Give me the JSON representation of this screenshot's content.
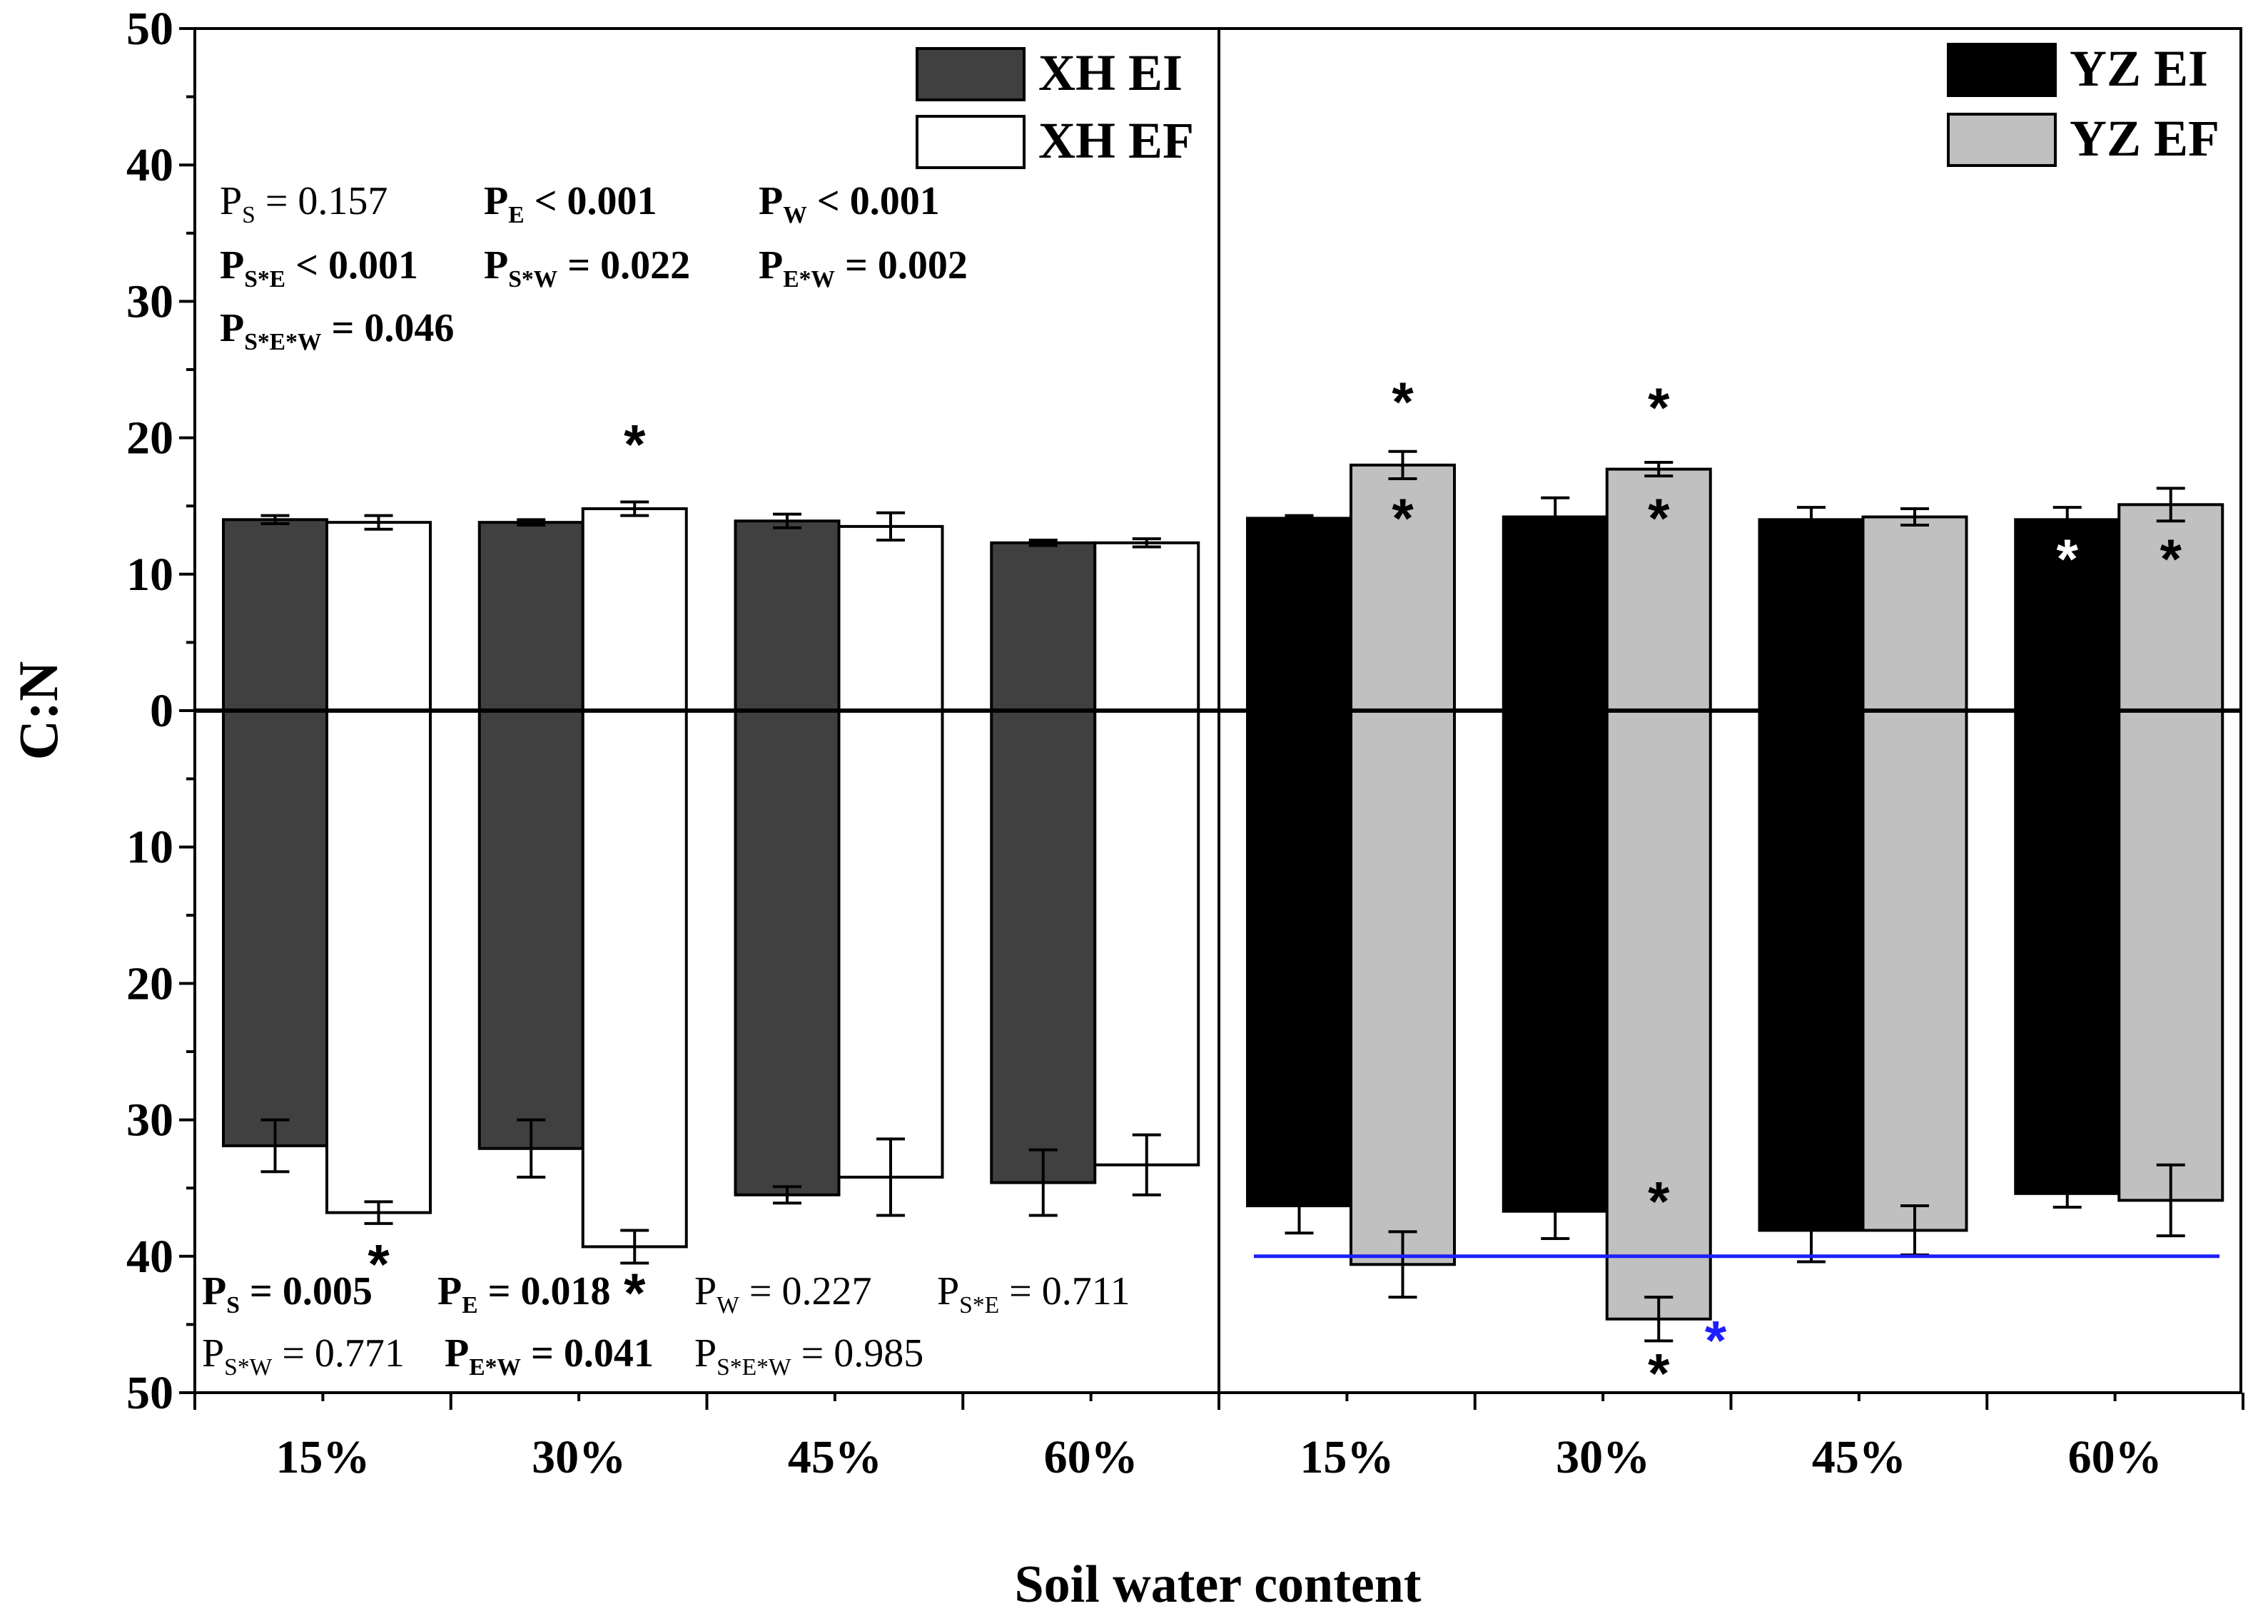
{
  "chart_data": {
    "type": "bar",
    "xlabel": "Soil water content",
    "ylabel": "C:N",
    "ylim_top": [
      0,
      50
    ],
    "ylim_bottom": [
      0,
      50
    ],
    "yticks": [
      "50",
      "40",
      "30",
      "20",
      "10",
      "0",
      "10",
      "20",
      "30",
      "40",
      "50"
    ],
    "categories": [
      "15%",
      "30%",
      "45%",
      "60%"
    ],
    "series": [
      {
        "name": "XH EI",
        "site": "XH",
        "color": "#404040",
        "top": [
          14.0,
          13.8,
          13.9,
          12.3
        ],
        "top_err": [
          0.3,
          0.2,
          0.5,
          0.2
        ],
        "bottom": [
          31.9,
          32.1,
          35.5,
          34.6
        ],
        "bottom_err": [
          1.9,
          2.1,
          0.6,
          2.4
        ]
      },
      {
        "name": "XH EF",
        "site": "XH",
        "color": "#ffffff",
        "top": [
          13.8,
          14.8,
          13.5,
          12.3
        ],
        "top_err": [
          0.5,
          0.5,
          1.0,
          0.3
        ],
        "bottom": [
          36.8,
          39.3,
          34.2,
          33.3
        ],
        "bottom_err": [
          0.8,
          1.2,
          2.8,
          2.2
        ]
      },
      {
        "name": "YZ EI",
        "site": "YZ",
        "color": "#000000",
        "top": [
          14.1,
          14.2,
          14.0,
          14.0
        ],
        "top_err": [
          0.2,
          1.4,
          0.9,
          0.9
        ],
        "bottom": [
          36.3,
          36.7,
          38.1,
          35.4
        ],
        "bottom_err": [
          2.0,
          2.0,
          2.3,
          1.0
        ]
      },
      {
        "name": "YZ EF",
        "site": "YZ",
        "color": "#c0c0c0",
        "top": [
          18.0,
          17.7,
          14.2,
          15.1
        ],
        "top_err": [
          1.0,
          0.5,
          0.6,
          1.2
        ],
        "bottom": [
          40.6,
          44.6,
          38.1,
          35.9
        ],
        "bottom_err": [
          2.4,
          1.6,
          1.8,
          2.6
        ]
      }
    ],
    "reference_line": {
      "panel": "YZ bottom",
      "value": 40,
      "color": "#1e1eff"
    },
    "stars": [
      {
        "series": "XH EF",
        "cat": 1,
        "panel": "top",
        "pos": 19.9,
        "color": "#000000"
      },
      {
        "series": "XH EF",
        "cat": 0,
        "panel": "bottom",
        "pos": 40.2,
        "color": "#000000"
      },
      {
        "series": "XH EF",
        "cat": 1,
        "panel": "bottom",
        "pos": 42.3,
        "color": "#000000"
      },
      {
        "series": "YZ EF",
        "cat": 0,
        "panel": "top",
        "pos": 23.0,
        "color": "#000000"
      },
      {
        "series": "YZ EF",
        "cat": 0,
        "panel": "top",
        "pos": 14.5,
        "color": "#000000"
      },
      {
        "series": "YZ EF",
        "cat": 1,
        "panel": "top",
        "pos": 22.6,
        "color": "#000000"
      },
      {
        "series": "YZ EF",
        "cat": 1,
        "panel": "top",
        "pos": 14.5,
        "color": "#000000"
      },
      {
        "series": "YZ EI",
        "cat": 3,
        "panel": "top",
        "pos": 11.5,
        "color": "#ffffff"
      },
      {
        "series": "YZ EF",
        "cat": 3,
        "panel": "top",
        "pos": 11.5,
        "color": "#000000"
      },
      {
        "series": "YZ EF",
        "cat": 1,
        "panel": "bottom",
        "pos": 35.6,
        "color": "#000000"
      },
      {
        "series": "YZ EF",
        "cat": 1,
        "panel": "bottom",
        "pos": 48.2,
        "color": "#000000"
      },
      {
        "series": "YZ EF",
        "cat": 1,
        "panel": "bottom",
        "pos": 45.8,
        "offset": 0.55,
        "color": "#1e1eff"
      }
    ],
    "annotations": {
      "xh_top": [
        {
          "p": "P",
          "sub": "S",
          "rest": " = 0.157",
          "bold": false
        },
        {
          "p": "P",
          "sub": "E",
          "rest": " < 0.001",
          "bold": true
        },
        {
          "p": "P",
          "sub": "W",
          "rest": " < 0.001",
          "bold": true
        },
        {
          "p": "P",
          "sub": "S*E",
          "rest": " < 0.001",
          "bold": true,
          "sub_plain": true
        },
        {
          "p": "P",
          "sub": "S*W",
          "rest": " = 0.022",
          "bold": true
        },
        {
          "p": "P",
          "sub": "E*W",
          "rest": " = 0.002",
          "bold": true
        },
        {
          "p": "P",
          "sub": "S*E*W",
          "rest": " = 0.046",
          "bold": true
        }
      ],
      "xh_bottom": [
        {
          "p": "P",
          "sub": "S",
          "rest": " = 0.005",
          "bold": true
        },
        {
          "p": "P",
          "sub": "E",
          "rest": " = 0.018",
          "bold": true
        },
        {
          "p": "P",
          "sub": "W",
          "rest": " = 0.227",
          "bold": false
        },
        {
          "p": "P",
          "sub": "S*E",
          "rest": " = 0.711",
          "bold": false
        },
        {
          "p": "P",
          "sub": "S*W",
          "rest": " = 0.771",
          "bold": false
        },
        {
          "p": "P",
          "sub": "E*W",
          "rest": " = 0.041",
          "bold": true
        },
        {
          "p": "P",
          "sub": "S*E*W",
          "rest": " = 0.985",
          "bold": false
        }
      ]
    }
  }
}
